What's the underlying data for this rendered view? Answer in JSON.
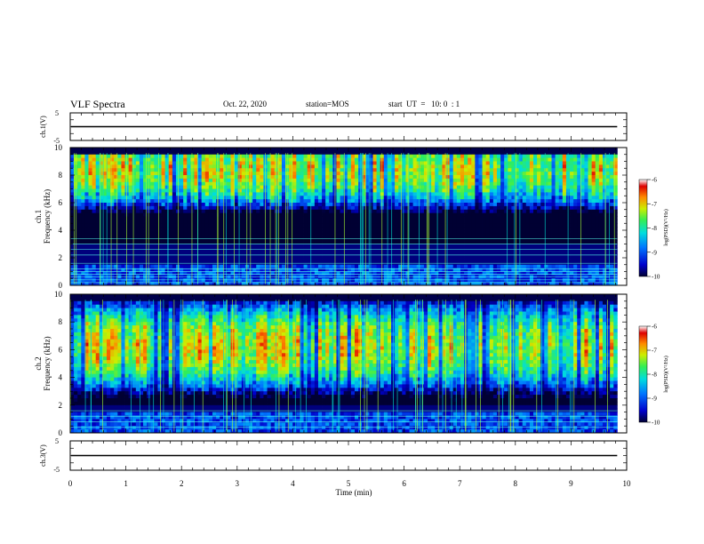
{
  "header": {
    "title": "VLF Spectra",
    "date": "Oct. 22, 2020",
    "station": "station=MOS",
    "start": "start  UT  =   10: 0  : 1"
  },
  "colors": {
    "colormap": [
      "#000033",
      "#0000cc",
      "#0077ff",
      "#00dddd",
      "#33ee55",
      "#ccee00",
      "#ff8800",
      "#dd0000",
      "#ffffff"
    ],
    "trace": "#000000",
    "background": "#ffffff"
  },
  "chart_data": [
    {
      "type": "line",
      "ylabel": "ch.1(V)",
      "ylim": [
        -5,
        5
      ],
      "yticks": [
        "5",
        "-5"
      ],
      "x": [
        0,
        9.83
      ],
      "values": [
        0,
        0
      ]
    },
    {
      "type": "heatmap",
      "ylabel_channel": "ch.1",
      "ylabel": "Frequency  (kHz)",
      "ylim": [
        0,
        10
      ],
      "yticks": [
        "0",
        "2",
        "4",
        "6",
        "8",
        "10"
      ],
      "xlim": [
        0,
        10
      ],
      "data_xmax": 9.83,
      "colorbar": {
        "label": "log(PSD)(V²/Hz)",
        "range": [
          -10,
          -6
        ],
        "ticks": [
          "-6",
          "-7",
          "-8",
          "-9",
          "-10"
        ]
      },
      "intense_band_khz": [
        7.5,
        9.2
      ],
      "low_band_khz": [
        1.5,
        3.0
      ],
      "hum_lines_khz": [
        0.2,
        0.4,
        0.6,
        0.8,
        1.0,
        1.2,
        1.6,
        2.2,
        2.6,
        3.0,
        3.4
      ]
    },
    {
      "type": "heatmap",
      "ylabel_channel": "ch.2",
      "ylabel": "Frequency  (kHz)",
      "ylim": [
        0,
        10
      ],
      "yticks": [
        "0",
        "2",
        "4",
        "6",
        "8",
        "10"
      ],
      "xlim": [
        0,
        10
      ],
      "data_xmax": 9.83,
      "colorbar": {
        "label": "log(PSD)(V²/Hz)",
        "range": [
          -10,
          -6
        ],
        "ticks": [
          "-6",
          "-7",
          "-8",
          "-9",
          "-10"
        ]
      },
      "intense_band_khz": [
        5.0,
        7.5
      ],
      "low_band_khz": [
        1.5,
        2.0
      ],
      "hum_lines_khz": [
        0.4,
        0.8,
        1.2,
        1.6
      ]
    },
    {
      "type": "line",
      "ylabel": "ch.3(V)",
      "ylim": [
        -5,
        5
      ],
      "yticks": [
        "5",
        "-5"
      ],
      "x": [
        0,
        9.83
      ],
      "values": [
        0,
        0
      ]
    }
  ],
  "xaxis": {
    "label": "Time  (min)",
    "ticks": [
      "0",
      "1",
      "2",
      "3",
      "4",
      "5",
      "6",
      "7",
      "8",
      "9",
      "10"
    ],
    "range": [
      0,
      10
    ]
  }
}
